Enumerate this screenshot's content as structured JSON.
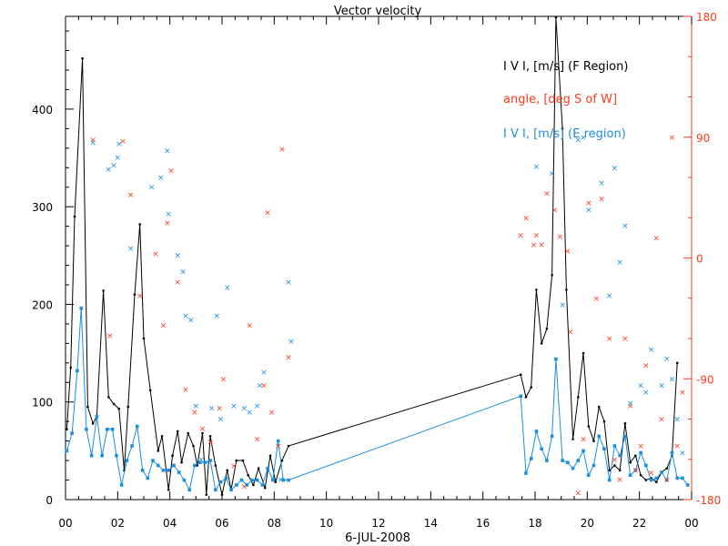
{
  "chart_data": {
    "type": "line",
    "title": "Vector velocity",
    "xlabel": "6-JUL-2008",
    "x_ticks": [
      "00",
      "02",
      "04",
      "06",
      "08",
      "10",
      "12",
      "14",
      "16",
      "18",
      "20",
      "22",
      "00"
    ],
    "y_left": {
      "ylim": [
        0,
        495
      ],
      "ticks": [
        0,
        100,
        200,
        300,
        400
      ]
    },
    "y_right": {
      "ylim": [
        -180,
        180
      ],
      "ticks": [
        -180,
        -90,
        0,
        90,
        180
      ]
    },
    "legend": [
      {
        "label": "I V I, [m/s] (F Region)",
        "color": "#000000"
      },
      {
        "label": "angle, [deg S of W]",
        "color": "#ff3a1a"
      },
      {
        "label": "I V I, [m/s] (E region)",
        "color": "#1a8fe0"
      }
    ],
    "series": [
      {
        "name": "I V I, [m/s] (F Region)",
        "color": "#000000",
        "marker": "dot",
        "points": [
          [
            0.05,
            72
          ],
          [
            0.2,
            135
          ],
          [
            0.35,
            290
          ],
          [
            0.65,
            452
          ],
          [
            0.85,
            95
          ],
          [
            1.05,
            78
          ],
          [
            1.2,
            85
          ],
          [
            1.45,
            214
          ],
          [
            1.65,
            105
          ],
          [
            1.85,
            98
          ],
          [
            2.05,
            93
          ],
          [
            2.25,
            30
          ],
          [
            2.4,
            95
          ],
          [
            2.65,
            210
          ],
          [
            2.85,
            282
          ],
          [
            3.0,
            165
          ],
          [
            3.25,
            112
          ],
          [
            3.55,
            50
          ],
          [
            3.7,
            65
          ],
          [
            3.95,
            10
          ],
          [
            4.1,
            45
          ],
          [
            4.3,
            70
          ],
          [
            4.45,
            38
          ],
          [
            4.7,
            68
          ],
          [
            4.9,
            55
          ],
          [
            5.05,
            35
          ],
          [
            5.25,
            68
          ],
          [
            5.4,
            5
          ],
          [
            5.55,
            65
          ],
          [
            5.75,
            35
          ],
          [
            6.0,
            5
          ],
          [
            6.2,
            30
          ],
          [
            6.35,
            10
          ],
          [
            6.55,
            40
          ],
          [
            6.8,
            40
          ],
          [
            7.0,
            25
          ],
          [
            7.2,
            15
          ],
          [
            7.4,
            32
          ],
          [
            7.65,
            12
          ],
          [
            7.85,
            45
          ],
          [
            8.05,
            18
          ],
          [
            8.3,
            40
          ],
          [
            8.55,
            55
          ],
          [
            17.45,
            128
          ],
          [
            17.65,
            105
          ],
          [
            17.85,
            115
          ],
          [
            18.05,
            215
          ],
          [
            18.25,
            160
          ],
          [
            18.45,
            175
          ],
          [
            18.65,
            230
          ],
          [
            18.8,
            494
          ],
          [
            19.05,
            380
          ],
          [
            19.2,
            215
          ],
          [
            19.45,
            62
          ],
          [
            19.65,
            105
          ],
          [
            19.85,
            150
          ],
          [
            20.05,
            75
          ],
          [
            20.25,
            60
          ],
          [
            20.45,
            95
          ],
          [
            20.65,
            80
          ],
          [
            20.85,
            30
          ],
          [
            21.05,
            35
          ],
          [
            21.25,
            30
          ],
          [
            21.45,
            78
          ],
          [
            21.65,
            38
          ],
          [
            21.85,
            45
          ],
          [
            22.05,
            25
          ],
          [
            22.25,
            20
          ],
          [
            22.45,
            22
          ],
          [
            22.65,
            18
          ],
          [
            22.85,
            28
          ],
          [
            23.05,
            32
          ],
          [
            23.25,
            45
          ],
          [
            23.45,
            140
          ]
        ]
      },
      {
        "name": "I V I, [m/s] (E region)",
        "color": "#1a8fe0",
        "marker": "square",
        "points": [
          [
            0.05,
            50
          ],
          [
            0.25,
            68
          ],
          [
            0.45,
            132
          ],
          [
            0.6,
            196
          ],
          [
            0.8,
            72
          ],
          [
            1.0,
            45
          ],
          [
            1.2,
            85
          ],
          [
            1.4,
            45
          ],
          [
            1.6,
            72
          ],
          [
            1.8,
            72
          ],
          [
            1.95,
            45
          ],
          [
            2.15,
            15
          ],
          [
            2.35,
            40
          ],
          [
            2.55,
            55
          ],
          [
            2.75,
            75
          ],
          [
            2.95,
            30
          ],
          [
            3.15,
            22
          ],
          [
            3.35,
            40
          ],
          [
            3.55,
            35
          ],
          [
            3.75,
            30
          ],
          [
            3.95,
            30
          ],
          [
            4.15,
            35
          ],
          [
            4.35,
            28
          ],
          [
            4.55,
            20
          ],
          [
            4.75,
            10
          ],
          [
            4.95,
            35
          ],
          [
            5.15,
            38
          ],
          [
            5.35,
            38
          ],
          [
            5.55,
            40
          ],
          [
            5.75,
            10
          ],
          [
            5.95,
            18
          ],
          [
            6.15,
            22
          ],
          [
            6.35,
            10
          ],
          [
            6.55,
            15
          ],
          [
            6.75,
            20
          ],
          [
            6.95,
            15
          ],
          [
            7.15,
            20
          ],
          [
            7.35,
            20
          ],
          [
            7.55,
            15
          ],
          [
            7.75,
            32
          ],
          [
            7.95,
            20
          ],
          [
            8.15,
            60
          ],
          [
            8.35,
            20
          ],
          [
            8.55,
            20
          ],
          [
            17.45,
            106
          ],
          [
            17.65,
            27
          ],
          [
            17.85,
            42
          ],
          [
            18.05,
            70
          ],
          [
            18.25,
            52
          ],
          [
            18.45,
            40
          ],
          [
            18.65,
            65
          ],
          [
            18.8,
            144
          ],
          [
            19.05,
            40
          ],
          [
            19.25,
            38
          ],
          [
            19.45,
            32
          ],
          [
            19.65,
            40
          ],
          [
            19.85,
            50
          ],
          [
            20.05,
            25
          ],
          [
            20.25,
            35
          ],
          [
            20.45,
            65
          ],
          [
            20.65,
            52
          ],
          [
            20.85,
            20
          ],
          [
            21.05,
            55
          ],
          [
            21.25,
            45
          ],
          [
            21.45,
            65
          ],
          [
            21.65,
            25
          ],
          [
            21.85,
            30
          ],
          [
            22.05,
            48
          ],
          [
            22.25,
            35
          ],
          [
            22.45,
            20
          ],
          [
            22.65,
            22
          ],
          [
            22.85,
            28
          ],
          [
            23.05,
            20
          ],
          [
            23.25,
            48
          ],
          [
            23.45,
            22
          ],
          [
            23.65,
            22
          ],
          [
            23.85,
            15
          ]
        ]
      },
      {
        "name": "angle, [deg S of W]",
        "color": "#ff3a1a",
        "marker": "x",
        "axis": "right",
        "points": [
          [
            1.05,
            88
          ],
          [
            2.2,
            87
          ],
          [
            2.5,
            47
          ],
          [
            1.7,
            -58
          ],
          [
            2.85,
            -28
          ],
          [
            3.75,
            -50
          ],
          [
            3.9,
            26
          ],
          [
            4.05,
            65
          ],
          [
            3.45,
            3
          ],
          [
            4.3,
            -18
          ],
          [
            4.6,
            -98
          ],
          [
            4.95,
            -115
          ],
          [
            5.25,
            -127
          ],
          [
            5.55,
            -137
          ],
          [
            5.9,
            -112
          ],
          [
            6.05,
            -90
          ],
          [
            6.45,
            -155
          ],
          [
            6.85,
            -170
          ],
          [
            7.05,
            -50
          ],
          [
            7.35,
            -135
          ],
          [
            7.6,
            -95
          ],
          [
            7.75,
            34
          ],
          [
            7.9,
            -115
          ],
          [
            8.15,
            -140
          ],
          [
            8.3,
            81
          ],
          [
            8.55,
            -74
          ],
          [
            17.45,
            17
          ],
          [
            17.65,
            30
          ],
          [
            18.05,
            17
          ],
          [
            17.95,
            10
          ],
          [
            18.25,
            10
          ],
          [
            18.45,
            48
          ],
          [
            18.75,
            36
          ],
          [
            18.95,
            16
          ],
          [
            19.25,
            5
          ],
          [
            19.35,
            -55
          ],
          [
            19.65,
            -175
          ],
          [
            19.85,
            -135
          ],
          [
            20.05,
            41
          ],
          [
            20.35,
            -30
          ],
          [
            20.55,
            44
          ],
          [
            20.85,
            -60
          ],
          [
            21.05,
            -150
          ],
          [
            21.25,
            -165
          ],
          [
            21.45,
            -60
          ],
          [
            21.65,
            -110
          ],
          [
            21.85,
            -158
          ],
          [
            22.05,
            -140
          ],
          [
            22.25,
            -80
          ],
          [
            22.45,
            -160
          ],
          [
            22.65,
            15
          ],
          [
            22.85,
            -120
          ],
          [
            23.05,
            -165
          ],
          [
            23.25,
            90
          ],
          [
            23.45,
            -140
          ],
          [
            23.65,
            -100
          ]
        ]
      },
      {
        "name": "I V I, [m/s] (E region)",
        "color": "#1a8fe0",
        "marker": "x",
        "axis": "right",
        "points": [
          [
            1.05,
            86
          ],
          [
            1.65,
            66
          ],
          [
            1.85,
            69
          ],
          [
            2.05,
            85
          ],
          [
            2.0,
            75
          ],
          [
            2.5,
            7
          ],
          [
            3.3,
            53
          ],
          [
            3.65,
            60
          ],
          [
            3.9,
            80
          ],
          [
            3.95,
            33
          ],
          [
            4.3,
            2
          ],
          [
            4.5,
            -10
          ],
          [
            4.6,
            -43
          ],
          [
            4.8,
            -46
          ],
          [
            5.0,
            -110
          ],
          [
            5.2,
            -150
          ],
          [
            5.6,
            -112
          ],
          [
            5.8,
            -43
          ],
          [
            5.95,
            -120
          ],
          [
            6.2,
            -22
          ],
          [
            6.45,
            -110
          ],
          [
            6.85,
            -112
          ],
          [
            7.05,
            -115
          ],
          [
            7.35,
            -110
          ],
          [
            7.45,
            -95
          ],
          [
            7.6,
            -85
          ],
          [
            8.25,
            -165
          ],
          [
            8.55,
            -18
          ],
          [
            8.65,
            -62
          ],
          [
            18.05,
            68
          ],
          [
            18.65,
            63
          ],
          [
            19.05,
            -35
          ],
          [
            19.65,
            88
          ],
          [
            19.85,
            90
          ],
          [
            20.05,
            36
          ],
          [
            20.55,
            56
          ],
          [
            20.85,
            -28
          ],
          [
            21.05,
            67
          ],
          [
            21.25,
            -3
          ],
          [
            21.45,
            24
          ],
          [
            21.65,
            -108
          ],
          [
            22.05,
            -95
          ],
          [
            22.25,
            -100
          ],
          [
            22.45,
            -68
          ],
          [
            22.85,
            -95
          ],
          [
            23.05,
            -75
          ],
          [
            23.25,
            -90
          ],
          [
            23.45,
            -120
          ],
          [
            23.65,
            -145
          ]
        ]
      }
    ]
  }
}
